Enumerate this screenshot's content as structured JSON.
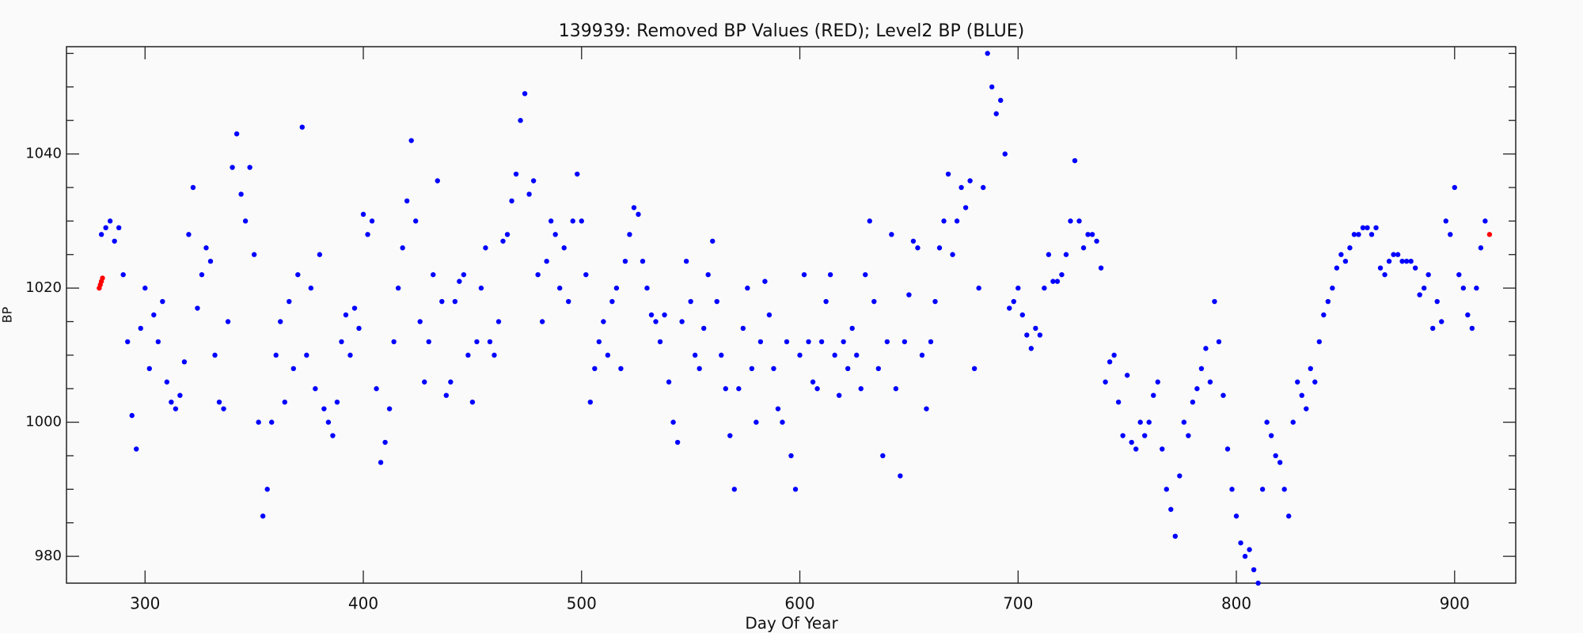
{
  "chart_data": {
    "type": "scatter",
    "title": "139939: Removed BP Values (RED); Level2 BP (BLUE)",
    "x_label": "Day Of Year",
    "y_label": "BP",
    "xlim": [
      264,
      928
    ],
    "ylim": [
      976,
      1056
    ],
    "xticks": [
      300,
      400,
      500,
      600,
      700,
      800,
      900
    ],
    "yticks": [
      980,
      1000,
      1020,
      1040
    ],
    "yminorticks": [
      985,
      990,
      995,
      1005,
      1010,
      1015,
      1025,
      1030,
      1035,
      1045,
      1050,
      1055
    ],
    "series": [
      {
        "color": "#0000ff",
        "x": [
          280,
          282,
          284,
          286,
          288,
          290,
          292,
          294,
          296,
          298,
          300,
          302,
          304,
          306,
          308,
          310,
          312,
          314,
          316,
          318,
          320,
          322,
          324,
          326,
          328,
          330,
          332,
          334,
          336,
          338,
          340,
          342,
          344,
          346,
          348,
          350,
          352,
          354,
          356,
          358,
          360,
          362,
          364,
          366,
          368,
          370,
          372,
          374,
          376,
          378,
          380,
          382,
          384,
          386,
          388,
          390,
          392,
          394,
          396,
          398,
          400,
          402,
          404,
          406,
          408,
          410,
          412,
          414,
          416,
          418,
          420,
          422,
          424,
          426,
          428,
          430,
          432,
          434,
          436,
          438,
          440,
          442,
          444,
          446,
          448,
          450,
          452,
          454,
          456,
          458,
          460,
          462,
          464,
          466,
          468,
          470,
          472,
          474,
          476,
          478,
          480,
          482,
          484,
          486,
          488,
          490,
          492,
          494,
          496,
          498,
          500,
          502,
          504,
          506,
          508,
          510,
          512,
          514,
          516,
          518,
          520,
          522,
          524,
          526,
          528,
          530,
          532,
          534,
          536,
          538,
          540,
          542,
          544,
          546,
          548,
          550,
          552,
          554,
          556,
          558,
          560,
          562,
          564,
          566,
          568,
          570,
          572,
          574,
          576,
          578,
          580,
          582,
          584,
          586,
          588,
          590,
          592,
          594,
          596,
          598,
          600,
          602,
          604,
          606,
          608,
          610,
          612,
          614,
          616,
          618,
          620,
          622,
          624,
          626,
          628,
          630,
          632,
          634,
          636,
          638,
          640,
          642,
          644,
          646,
          648,
          650,
          652,
          654,
          656,
          658,
          660,
          662,
          664,
          666,
          668,
          670,
          672,
          674,
          676,
          678,
          680,
          682,
          684,
          686,
          688,
          690,
          692,
          694,
          696,
          698,
          700,
          702,
          704,
          706,
          708,
          710,
          712,
          714,
          716,
          718,
          720,
          722,
          724,
          726,
          728,
          730,
          732,
          734,
          736,
          738,
          740,
          742,
          744,
          746,
          748,
          750,
          752,
          754,
          756,
          758,
          760,
          762,
          764,
          766,
          768,
          770,
          772,
          774,
          776,
          778,
          780,
          782,
          784,
          786,
          788,
          790,
          792,
          794,
          796,
          798,
          800,
          802,
          804,
          806,
          808,
          810,
          812,
          814,
          816,
          818,
          820,
          822,
          824,
          826,
          828,
          830,
          832,
          834,
          836,
          838,
          840,
          842,
          844,
          846,
          848,
          850,
          852,
          854,
          856,
          858,
          860,
          862,
          864,
          866,
          868,
          870,
          872,
          874,
          876,
          878,
          880,
          882,
          884,
          886,
          888,
          890,
          892,
          894,
          896,
          898,
          900,
          902,
          904,
          906,
          908,
          910,
          912,
          914
        ],
        "values": [
          1028,
          1029,
          1030,
          1027,
          1029,
          1022,
          1012,
          1001,
          996,
          1014,
          1020,
          1008,
          1016,
          1012,
          1018,
          1006,
          1003,
          1002,
          1004,
          1009,
          1028,
          1035,
          1017,
          1022,
          1026,
          1024,
          1010,
          1003,
          1002,
          1015,
          1038,
          1043,
          1034,
          1030,
          1038,
          1025,
          1000,
          986,
          990,
          1000,
          1010,
          1015,
          1003,
          1018,
          1008,
          1022,
          1044,
          1010,
          1020,
          1005,
          1025,
          1002,
          1000,
          998,
          1003,
          1012,
          1016,
          1010,
          1017,
          1014,
          1031,
          1028,
          1030,
          1005,
          994,
          997,
          1002,
          1012,
          1020,
          1026,
          1033,
          1042,
          1030,
          1015,
          1006,
          1012,
          1022,
          1036,
          1018,
          1004,
          1006,
          1018,
          1021,
          1022,
          1010,
          1003,
          1012,
          1020,
          1026,
          1012,
          1010,
          1015,
          1027,
          1028,
          1033,
          1037,
          1045,
          1049,
          1034,
          1036,
          1022,
          1015,
          1024,
          1030,
          1028,
          1020,
          1026,
          1018,
          1030,
          1037,
          1030,
          1022,
          1003,
          1008,
          1012,
          1015,
          1010,
          1018,
          1020,
          1008,
          1024,
          1028,
          1032,
          1031,
          1024,
          1020,
          1016,
          1015,
          1012,
          1016,
          1006,
          1000,
          997,
          1015,
          1024,
          1018,
          1010,
          1008,
          1014,
          1022,
          1027,
          1018,
          1010,
          1005,
          998,
          990,
          1005,
          1014,
          1020,
          1008,
          1000,
          1012,
          1021,
          1016,
          1008,
          1002,
          1000,
          1012,
          995,
          990,
          1010,
          1022,
          1012,
          1006,
          1005,
          1012,
          1018,
          1022,
          1010,
          1004,
          1012,
          1008,
          1014,
          1010,
          1005,
          1022,
          1030,
          1018,
          1008,
          995,
          1012,
          1028,
          1005,
          992,
          1012,
          1019,
          1027,
          1026,
          1010,
          1002,
          1012,
          1018,
          1026,
          1030,
          1037,
          1025,
          1030,
          1035,
          1032,
          1036,
          1008,
          1020,
          1035,
          1055,
          1050,
          1046,
          1048,
          1040,
          1017,
          1018,
          1020,
          1016,
          1013,
          1011,
          1014,
          1013,
          1020,
          1025,
          1021,
          1021,
          1022,
          1025,
          1030,
          1039,
          1030,
          1026,
          1028,
          1028,
          1027,
          1023,
          1006,
          1009,
          1010,
          1003,
          998,
          1007,
          997,
          996,
          1000,
          998,
          1000,
          1004,
          1006,
          996,
          990,
          987,
          983,
          992,
          1000,
          998,
          1003,
          1005,
          1008,
          1011,
          1006,
          1018,
          1012,
          1004,
          996,
          990,
          986,
          982,
          980,
          981,
          978,
          976,
          990,
          1000,
          998,
          995,
          994,
          990,
          986,
          1000,
          1006,
          1004,
          1002,
          1008,
          1006,
          1012,
          1016,
          1018,
          1020,
          1023,
          1025,
          1024,
          1026,
          1028,
          1028,
          1029,
          1029,
          1028,
          1029,
          1023,
          1022,
          1024,
          1025,
          1025,
          1024,
          1024,
          1024,
          1023,
          1019,
          1020,
          1022,
          1014,
          1018,
          1015,
          1030,
          1028,
          1035,
          1022,
          1020,
          1016,
          1014,
          1020,
          1026,
          1030
        ]
      },
      {
        "color": "#ff0000",
        "x": [
          279,
          279.5,
          280,
          280.5,
          916
        ],
        "values": [
          1020,
          1020.5,
          1021,
          1021.5,
          1028
        ]
      }
    ]
  }
}
